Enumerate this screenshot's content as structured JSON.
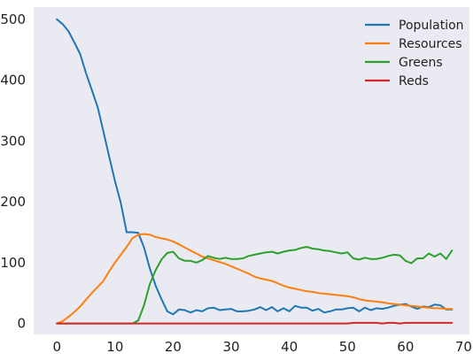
{
  "chart_data": {
    "type": "line",
    "title": "",
    "xlabel": "",
    "ylabel": "",
    "xlim": [
      -4,
      71
    ],
    "ylim": [
      -18,
      520
    ],
    "xticks": [
      0,
      10,
      20,
      30,
      40,
      50,
      60,
      70
    ],
    "yticks": [
      0,
      100,
      200,
      300,
      400,
      500
    ],
    "xtick_labels": [
      "0",
      "10",
      "20",
      "30",
      "40",
      "50",
      "60",
      "70"
    ],
    "ytick_labels": [
      "0",
      "100",
      "200",
      "300",
      "400",
      "500"
    ],
    "grid": false,
    "legend_position": "top-right",
    "background": "#eaeaf2",
    "series": [
      {
        "name": "Population",
        "color": "#1f77b4",
        "x": [
          0,
          1,
          2,
          3,
          4,
          5,
          6,
          7,
          8,
          9,
          10,
          11,
          12,
          13,
          14,
          15,
          16,
          17,
          18,
          19,
          20,
          21,
          22,
          23,
          24,
          25,
          26,
          27,
          28,
          29,
          30,
          31,
          32,
          33,
          34,
          35,
          36,
          37,
          38,
          39,
          40,
          41,
          42,
          43,
          44,
          45,
          46,
          47,
          48,
          49,
          50,
          51,
          52,
          53,
          54,
          55,
          56,
          57,
          58,
          59,
          60,
          61,
          62,
          63,
          64,
          65,
          66,
          67,
          68
        ],
        "y": [
          500,
          492,
          480,
          462,
          443,
          412,
          384,
          356,
          316,
          274,
          234,
          198,
          150,
          150,
          149,
          125,
          90,
          62,
          40,
          20,
          15,
          23,
          22,
          18,
          22,
          20,
          25,
          26,
          22,
          23,
          24,
          20,
          20,
          21,
          23,
          27,
          22,
          27,
          20,
          25,
          20,
          29,
          26,
          26,
          21,
          24,
          18,
          20,
          23,
          23,
          25,
          26,
          20,
          26,
          22,
          25,
          24,
          26,
          29,
          31,
          32,
          28,
          24,
          28,
          27,
          31,
          30,
          23,
          23
        ]
      },
      {
        "name": "Resources",
        "color": "#ff7f0e",
        "x": [
          0,
          1,
          2,
          3,
          4,
          5,
          6,
          7,
          8,
          9,
          10,
          11,
          12,
          13,
          14,
          15,
          16,
          17,
          18,
          19,
          20,
          21,
          22,
          23,
          24,
          25,
          26,
          27,
          28,
          29,
          30,
          31,
          32,
          33,
          34,
          35,
          36,
          37,
          38,
          39,
          40,
          41,
          42,
          43,
          44,
          45,
          46,
          47,
          48,
          49,
          50,
          51,
          52,
          53,
          54,
          55,
          56,
          57,
          58,
          59,
          60,
          61,
          62,
          63,
          64,
          65,
          66,
          67,
          68
        ],
        "y": [
          0,
          4,
          11,
          19,
          28,
          39,
          50,
          60,
          70,
          86,
          100,
          113,
          126,
          140,
          146,
          147,
          146,
          142,
          140,
          138,
          135,
          130,
          125,
          120,
          115,
          110,
          107,
          104,
          101,
          98,
          94,
          90,
          86,
          82,
          77,
          74,
          72,
          70,
          66,
          62,
          59,
          57,
          55,
          53,
          52,
          50,
          49,
          48,
          47,
          46,
          45,
          43,
          40,
          38,
          37,
          36,
          35,
          33,
          32,
          31,
          30,
          29,
          28,
          27,
          26,
          25,
          25,
          24,
          24
        ]
      },
      {
        "name": "Greens",
        "color": "#2ca02c",
        "x": [
          0,
          1,
          2,
          3,
          4,
          5,
          6,
          7,
          8,
          9,
          10,
          11,
          12,
          13,
          14,
          15,
          16,
          17,
          18,
          19,
          20,
          21,
          22,
          23,
          24,
          25,
          26,
          27,
          28,
          29,
          30,
          31,
          32,
          33,
          34,
          35,
          36,
          37,
          38,
          39,
          40,
          41,
          42,
          43,
          44,
          45,
          46,
          47,
          48,
          49,
          50,
          51,
          52,
          53,
          54,
          55,
          56,
          57,
          58,
          59,
          60,
          61,
          62,
          63,
          64,
          65,
          66,
          67,
          68
        ],
        "y": [
          0,
          0,
          0,
          0,
          0,
          0,
          0,
          0,
          0,
          0,
          0,
          0,
          0,
          0,
          5,
          30,
          65,
          88,
          105,
          116,
          118,
          107,
          103,
          103,
          100,
          104,
          111,
          108,
          106,
          108,
          106,
          106,
          107,
          111,
          113,
          115,
          117,
          118,
          115,
          118,
          120,
          121,
          124,
          126,
          123,
          122,
          120,
          119,
          117,
          115,
          117,
          107,
          105,
          108,
          106,
          106,
          108,
          111,
          113,
          112,
          103,
          99,
          107,
          107,
          115,
          110,
          115,
          106,
          120
        ]
      },
      {
        "name": "Reds",
        "color": "#d62728",
        "x": [
          0,
          5,
          10,
          15,
          20,
          25,
          30,
          35,
          40,
          45,
          50,
          51,
          52,
          53,
          54,
          55,
          56,
          57,
          58,
          59,
          60,
          61,
          62,
          63,
          64,
          65,
          66,
          67,
          68
        ],
        "y": [
          0,
          0,
          0,
          0,
          0,
          0,
          0,
          0,
          0,
          0,
          0,
          1,
          1,
          1,
          1,
          1,
          0,
          1,
          1,
          0,
          1,
          1,
          1,
          1,
          1,
          1,
          1,
          1,
          1
        ]
      }
    ]
  }
}
